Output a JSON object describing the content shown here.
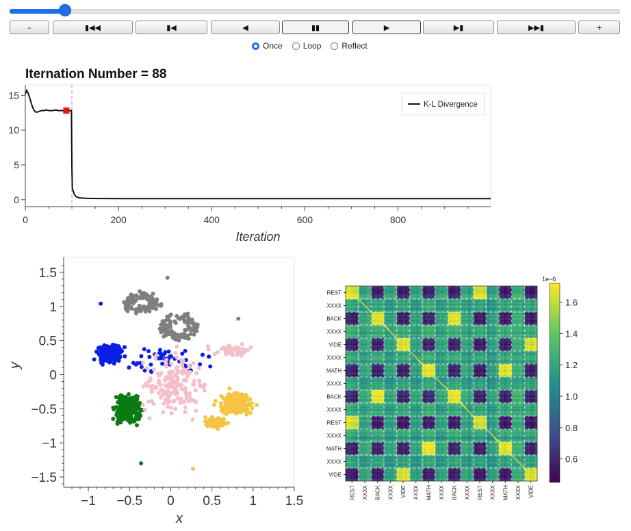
{
  "slider": {
    "fraction": 0.09
  },
  "buttons": [
    {
      "name": "minus-button",
      "label": "–"
    },
    {
      "name": "first-frame-button",
      "label": "▮◀◀"
    },
    {
      "name": "previous-frame-button",
      "label": "▮◀"
    },
    {
      "name": "play-reverse-button",
      "label": "◀"
    },
    {
      "name": "pause-button",
      "label": "▮▮"
    },
    {
      "name": "play-button",
      "label": "▶"
    },
    {
      "name": "next-frame-button",
      "label": "▶▮"
    },
    {
      "name": "last-frame-button",
      "label": "▶▶▮"
    },
    {
      "name": "plus-button",
      "label": "+"
    }
  ],
  "radios": [
    {
      "label": "Once",
      "checked": true
    },
    {
      "label": "Loop",
      "checked": false
    },
    {
      "label": "Reflect",
      "checked": false
    }
  ],
  "chart_data": [
    {
      "type": "line",
      "title": "Iternation Number = 88",
      "xlabel": "Iteration",
      "ylabel": "",
      "xlim": [
        0,
        999
      ],
      "ylim": [
        -1,
        16.5
      ],
      "xticks": [
        0,
        200,
        400,
        600,
        800
      ],
      "yticks": [
        0,
        5,
        10,
        15
      ],
      "series": [
        {
          "name": "K-L Divergence",
          "x": [
            0,
            3,
            6,
            10,
            14,
            18,
            22,
            26,
            30,
            35,
            40,
            45,
            50,
            55,
            60,
            65,
            70,
            75,
            80,
            85,
            90,
            95,
            99,
            100,
            101,
            103,
            105,
            108,
            112,
            116,
            120,
            130,
            140,
            160,
            200,
            300,
            500,
            800,
            999
          ],
          "y": [
            15.2,
            15.7,
            15.3,
            14.5,
            13.6,
            12.9,
            12.6,
            12.6,
            12.7,
            12.8,
            12.8,
            12.9,
            12.8,
            12.8,
            12.8,
            12.9,
            12.8,
            12.8,
            12.8,
            12.8,
            12.8,
            12.8,
            12.8,
            4.5,
            1.6,
            1.2,
            0.8,
            0.5,
            0.35,
            0.28,
            0.24,
            0.2,
            0.18,
            0.17,
            0.16,
            0.15,
            0.15,
            0.15,
            0.15
          ]
        }
      ],
      "marker": {
        "x": 88,
        "y": 12.8,
        "color": "#ee1111"
      },
      "vline": {
        "x": 100,
        "color": "#d9a8dc"
      },
      "legend": "top-right"
    },
    {
      "type": "scatter",
      "xlabel": "x",
      "ylabel": "y",
      "xlim": [
        -1.3,
        1.5
      ],
      "ylim": [
        -1.65,
        1.72
      ],
      "xticks": [
        -1,
        -0.5,
        0,
        0.5,
        1,
        1.5
      ],
      "xticklabels": [
        "−1",
        "−0.5",
        "0",
        "0.5",
        "1",
        "1.5"
      ],
      "yticks": [
        -1.5,
        -1,
        -0.5,
        0,
        0.5,
        1,
        1.5
      ],
      "yticklabels": [
        "−1.5",
        "−1",
        "−0.5",
        "0",
        "0.5",
        "1",
        "1.5"
      ],
      "clusters": [
        {
          "color": "#7f7f7f",
          "count": 110,
          "shape": "ring",
          "cx": -0.35,
          "cy": 1.05,
          "rx": 0.17,
          "ry": 0.1
        },
        {
          "color": "#7f7f7f",
          "count": 110,
          "shape": "ring",
          "cx": 0.1,
          "cy": 0.7,
          "rx": 0.2,
          "ry": 0.16
        },
        {
          "color": "#0a1ee6",
          "count": 160,
          "shape": "blob",
          "cx": -0.75,
          "cy": 0.3,
          "rx": 0.14,
          "ry": 0.12
        },
        {
          "color": "#0a1ee6",
          "count": 50,
          "shape": "blob",
          "cx": -0.05,
          "cy": 0.22,
          "rx": 0.42,
          "ry": 0.18
        },
        {
          "color": "#0a7a12",
          "count": 230,
          "shape": "blob",
          "cx": -0.52,
          "cy": -0.5,
          "rx": 0.13,
          "ry": 0.2
        },
        {
          "color": "#f5bfca",
          "count": 170,
          "shape": "blob",
          "cx": 0.05,
          "cy": -0.15,
          "rx": 0.32,
          "ry": 0.35
        },
        {
          "color": "#f5bfca",
          "count": 55,
          "shape": "blob",
          "cx": 0.75,
          "cy": 0.35,
          "rx": 0.22,
          "ry": 0.07
        },
        {
          "color": "#f6c443",
          "count": 170,
          "shape": "blob",
          "cx": 0.78,
          "cy": -0.42,
          "rx": 0.17,
          "ry": 0.14
        },
        {
          "color": "#f6c443",
          "count": 70,
          "shape": "blob",
          "cx": 0.55,
          "cy": -0.7,
          "rx": 0.12,
          "ry": 0.07
        }
      ],
      "outliers": [
        {
          "x": -0.36,
          "y": -1.3,
          "color": "#0a7a12"
        },
        {
          "x": 0.27,
          "y": -1.38,
          "color": "#f6c443"
        },
        {
          "x": -0.04,
          "y": 1.42,
          "color": "#7f7f7f"
        },
        {
          "x": -0.85,
          "y": 1.04,
          "color": "#0a1ee6"
        },
        {
          "x": 0.82,
          "y": 0.82,
          "color": "#7f7f7f"
        }
      ]
    },
    {
      "type": "heatmap",
      "labels_y": [
        "REST",
        "XXXX",
        "BACK",
        "XXXX",
        "VIDE",
        "XXXX",
        "MATH",
        "XXXX",
        "BACK",
        "XXXX",
        "REST",
        "XXXX",
        "MATH",
        "XXXX",
        "VIDE"
      ],
      "labels_x": [
        "REST",
        "XXXX",
        "BACK",
        "XXXX",
        "VIDE",
        "XXXX",
        "MATH",
        "XXXX",
        "BACK",
        "XXXX",
        "REST",
        "XXXX",
        "MATH",
        "XXXX",
        "VIDE"
      ],
      "block_types": [
        "REST",
        "X",
        "BACK",
        "X",
        "VIDE",
        "X",
        "MATH",
        "X",
        "BACK",
        "X",
        "REST",
        "X",
        "MATH",
        "X",
        "VIDE"
      ],
      "colorbar": {
        "exponent": "1e−6",
        "ticks": [
          0.6,
          0.8,
          1.0,
          1.2,
          1.4,
          1.6
        ],
        "ticklabels": [
          "0.6",
          "0.8",
          "1.0",
          "1.2",
          "1.4",
          "1.6"
        ],
        "min": 0.45,
        "max": 1.72
      }
    }
  ]
}
